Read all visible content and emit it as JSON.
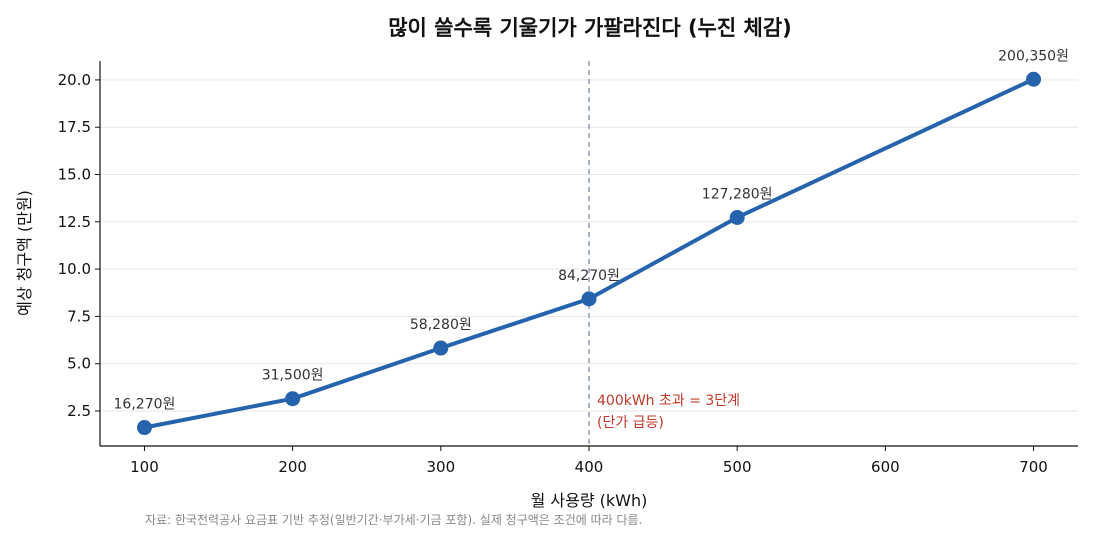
{
  "chart_data": {
    "type": "line",
    "title": "많이 쓸수록 기울기가 가팔라진다 (누진 체감)",
    "xlabel": "월 사용량 (kWh)",
    "ylabel": "예상 청구액 (만원)",
    "x": [
      100,
      200,
      300,
      400,
      500,
      700
    ],
    "y": [
      1.627,
      3.15,
      5.828,
      8.427,
      12.728,
      20.035
    ],
    "point_labels": [
      "16,270원",
      "31,500원",
      "58,280원",
      "84,270원",
      "127,280원",
      "200,350원"
    ],
    "xlim": [
      70,
      730
    ],
    "ylim": [
      0.65,
      21.0
    ],
    "xticks": [
      100,
      200,
      300,
      400,
      500,
      600,
      700
    ],
    "xtick_labels": [
      "100",
      "200",
      "300",
      "400",
      "500",
      "600",
      "700"
    ],
    "yticks": [
      2.5,
      5.0,
      7.5,
      10.0,
      12.5,
      15.0,
      17.5,
      20.0
    ],
    "ytick_labels": [
      "2.5",
      "5.0",
      "7.5",
      "10.0",
      "12.5",
      "15.0",
      "17.5",
      "20.0"
    ],
    "grid": "horizontal",
    "line_color": "#2563ad",
    "vline": {
      "x": 400,
      "color": "#8a9bb0"
    },
    "annotation": {
      "lines": [
        "400kWh 초과 = 3단계",
        "(단가 급등)"
      ],
      "color": "#c0392b"
    },
    "source": "자료: 한국전력공사 요금표 기반 추정(일반기간·부가세·기금 포함). 실제 청구액은 조건에 따라 다름."
  }
}
